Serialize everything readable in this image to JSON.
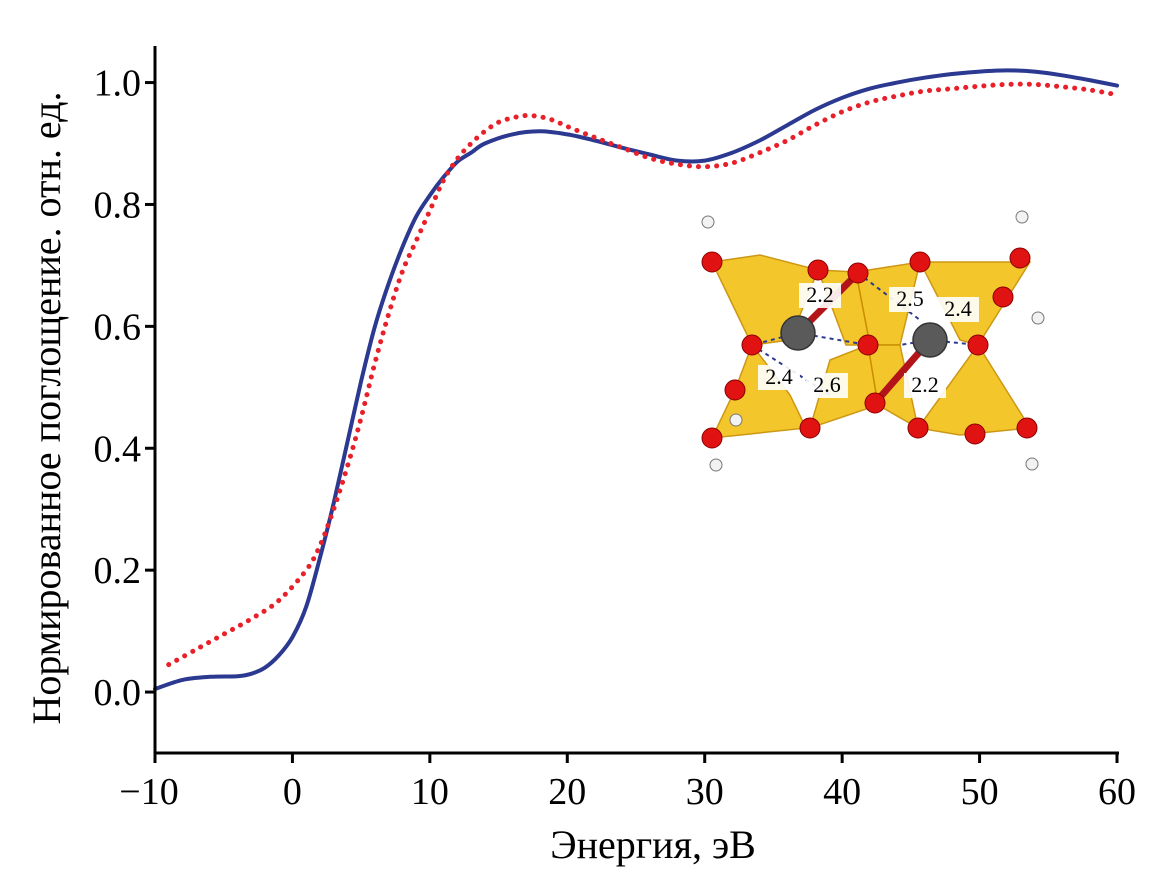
{
  "chart_data": {
    "type": "line",
    "title": "",
    "xlabel": "Энергия, эВ",
    "ylabel": "Нормированное поглощение. отн. ед.",
    "xlim": [
      -10,
      60
    ],
    "ylim": [
      -0.1,
      1.06
    ],
    "x_ticks": [
      -10,
      0,
      10,
      20,
      30,
      40,
      50,
      60
    ],
    "x_tick_labels": [
      "−10",
      "0",
      "10",
      "20",
      "30",
      "40",
      "50",
      "60"
    ],
    "y_ticks": [
      0.0,
      0.2,
      0.4,
      0.6,
      0.8,
      1.0
    ],
    "y_tick_labels": [
      "0.0",
      "0.2",
      "0.4",
      "0.6",
      "0.8",
      "1.0"
    ],
    "grid": false,
    "legend": "none",
    "series": [
      {
        "style": "solid",
        "color": "#2b3990",
        "points": [
          [
            -10,
            0.005
          ],
          [
            -8,
            0.02
          ],
          [
            -6,
            0.025
          ],
          [
            -4,
            0.026
          ],
          [
            -3,
            0.03
          ],
          [
            -2,
            0.04
          ],
          [
            -1,
            0.06
          ],
          [
            0,
            0.09
          ],
          [
            1,
            0.14
          ],
          [
            2,
            0.22
          ],
          [
            3,
            0.31
          ],
          [
            4,
            0.41
          ],
          [
            5,
            0.51
          ],
          [
            6,
            0.6
          ],
          [
            7,
            0.67
          ],
          [
            8,
            0.73
          ],
          [
            9,
            0.78
          ],
          [
            10,
            0.815
          ],
          [
            11,
            0.845
          ],
          [
            12,
            0.87
          ],
          [
            13,
            0.885
          ],
          [
            14,
            0.9
          ],
          [
            16,
            0.915
          ],
          [
            18,
            0.92
          ],
          [
            20,
            0.915
          ],
          [
            22,
            0.905
          ],
          [
            24,
            0.893
          ],
          [
            26,
            0.882
          ],
          [
            28,
            0.872
          ],
          [
            30,
            0.872
          ],
          [
            32,
            0.885
          ],
          [
            34,
            0.905
          ],
          [
            36,
            0.93
          ],
          [
            38,
            0.955
          ],
          [
            40,
            0.975
          ],
          [
            42,
            0.99
          ],
          [
            44,
            1.0
          ],
          [
            46,
            1.008
          ],
          [
            48,
            1.014
          ],
          [
            50,
            1.018
          ],
          [
            52,
            1.02
          ],
          [
            54,
            1.018
          ],
          [
            56,
            1.012
          ],
          [
            58,
            1.004
          ],
          [
            60,
            0.995
          ]
        ]
      },
      {
        "style": "dotted",
        "color": "#e8202a",
        "points": [
          [
            -9,
            0.045
          ],
          [
            -7,
            0.07
          ],
          [
            -5,
            0.095
          ],
          [
            -3,
            0.12
          ],
          [
            -1,
            0.15
          ],
          [
            1,
            0.2
          ],
          [
            2,
            0.24
          ],
          [
            3,
            0.3
          ],
          [
            4,
            0.37
          ],
          [
            5,
            0.45
          ],
          [
            6,
            0.54
          ],
          [
            7,
            0.62
          ],
          [
            8,
            0.69
          ],
          [
            9,
            0.74
          ],
          [
            10,
            0.79
          ],
          [
            11,
            0.84
          ],
          [
            12,
            0.875
          ],
          [
            13,
            0.9
          ],
          [
            14,
            0.92
          ],
          [
            15,
            0.935
          ],
          [
            16,
            0.942
          ],
          [
            17,
            0.946
          ],
          [
            18,
            0.944
          ],
          [
            19,
            0.938
          ],
          [
            20,
            0.928
          ],
          [
            22,
            0.91
          ],
          [
            24,
            0.893
          ],
          [
            26,
            0.876
          ],
          [
            28,
            0.866
          ],
          [
            30,
            0.862
          ],
          [
            32,
            0.868
          ],
          [
            34,
            0.885
          ],
          [
            36,
            0.905
          ],
          [
            38,
            0.93
          ],
          [
            40,
            0.952
          ],
          [
            42,
            0.968
          ],
          [
            44,
            0.978
          ],
          [
            46,
            0.986
          ],
          [
            48,
            0.99
          ],
          [
            50,
            0.994
          ],
          [
            52,
            0.997
          ],
          [
            54,
            0.997
          ],
          [
            56,
            0.993
          ],
          [
            58,
            0.988
          ],
          [
            60,
            0.98
          ]
        ]
      }
    ],
    "inset": {
      "bond_labels": [
        "2.2",
        "2.5",
        "2.4",
        "2.4",
        "2.6",
        "2.2"
      ]
    }
  }
}
